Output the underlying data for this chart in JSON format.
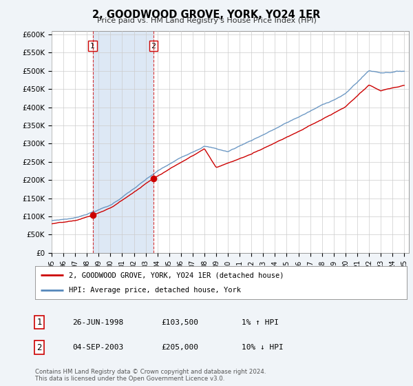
{
  "title": "2, GOODWOOD GROVE, YORK, YO24 1ER",
  "subtitle": "Price paid vs. HM Land Registry's House Price Index (HPI)",
  "ylabel_ticks": [
    "£0",
    "£50K",
    "£100K",
    "£150K",
    "£200K",
    "£250K",
    "£300K",
    "£350K",
    "£400K",
    "£450K",
    "£500K",
    "£550K",
    "£600K"
  ],
  "ytick_values": [
    0,
    50000,
    100000,
    150000,
    200000,
    250000,
    300000,
    350000,
    400000,
    450000,
    500000,
    550000,
    600000
  ],
  "ylim": [
    0,
    610000
  ],
  "purchase1": {
    "date_num": 1998.49,
    "price": 103500,
    "label": "1"
  },
  "purchase2": {
    "date_num": 2003.67,
    "price": 205000,
    "label": "2"
  },
  "legend_line1": "2, GOODWOOD GROVE, YORK, YO24 1ER (detached house)",
  "legend_line2": "HPI: Average price, detached house, York",
  "table_rows": [
    {
      "label": "1",
      "date": "26-JUN-1998",
      "price": "£103,500",
      "hpi": "1% ↑ HPI"
    },
    {
      "label": "2",
      "date": "04-SEP-2003",
      "price": "£205,000",
      "hpi": "10% ↓ HPI"
    }
  ],
  "footer": "Contains HM Land Registry data © Crown copyright and database right 2024.\nThis data is licensed under the Open Government Licence v3.0.",
  "line_color_red": "#cc0000",
  "line_color_blue": "#5588bb",
  "vline_color": "#cc0000",
  "shade_color": "#dde8f5",
  "bg_color": "#f0f4f8",
  "plot_bg": "#ffffff",
  "grid_color": "#cccccc"
}
